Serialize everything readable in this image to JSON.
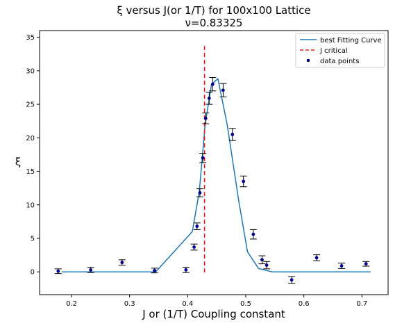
{
  "chart_data": {
    "type": "line",
    "title": "ξ versus J(or 1/T) for 100x100 Lattice",
    "subtitle": "ν=0.83325",
    "xlabel": "J or (1/T) Coupling constant",
    "ylabel": "ξ",
    "xlim": [
      0.145,
      0.745
    ],
    "ylim": [
      -3.4,
      36.0
    ],
    "xticks": [
      0.2,
      0.3,
      0.4,
      0.5,
      0.6,
      0.7
    ],
    "yticks": [
      0,
      5,
      10,
      15,
      20,
      25,
      30,
      35
    ],
    "xtick_labels": [
      "0.2",
      "0.3",
      "0.4",
      "0.5",
      "0.6",
      "0.7"
    ],
    "ytick_labels": [
      "0",
      "5",
      "10",
      "15",
      "20",
      "25",
      "30",
      "35"
    ],
    "grid": false,
    "legend_position": "top-right",
    "legend": [
      "best Fitting Curve",
      "J critical",
      "data points"
    ],
    "colors": {
      "fit": "#1f77b4",
      "critical": "#e41a1c",
      "points": "#00008b",
      "errorbar": "#000000"
    },
    "series": [
      {
        "name": "best Fitting Curve",
        "style": "solid-line",
        "x": [
          0.183,
          0.345,
          0.408,
          0.42,
          0.43,
          0.441,
          0.452,
          0.468,
          0.488,
          0.503,
          0.522,
          0.545,
          0.575,
          0.62,
          0.67,
          0.715
        ],
        "y": [
          0.0,
          0.0,
          6.0,
          12.0,
          22.0,
          28.0,
          28.8,
          22.0,
          10.5,
          3.0,
          0.5,
          0.0,
          0.0,
          0.0,
          0.0,
          0.0
        ]
      },
      {
        "name": "J critical",
        "style": "dashed-vertical",
        "x": [
          0.429,
          0.429
        ],
        "y": [
          -0.1,
          34.0
        ]
      },
      {
        "name": "data points",
        "style": "markers-with-errorbars",
        "x": [
          0.177,
          0.233,
          0.287,
          0.343,
          0.397,
          0.411,
          0.416,
          0.421,
          0.426,
          0.431,
          0.437,
          0.443,
          0.461,
          0.477,
          0.496,
          0.513,
          0.528,
          0.536,
          0.579,
          0.622,
          0.665,
          0.707
        ],
        "y": [
          0.1,
          0.3,
          1.4,
          0.2,
          0.3,
          3.7,
          6.8,
          11.8,
          17.0,
          22.9,
          25.9,
          28.0,
          27.1,
          20.5,
          13.5,
          5.6,
          1.8,
          1.0,
          -1.2,
          2.1,
          0.9,
          1.2
        ],
        "error": [
          0.35,
          0.4,
          0.4,
          0.35,
          0.4,
          0.45,
          0.5,
          0.6,
          0.7,
          0.8,
          0.9,
          1.0,
          1.0,
          0.9,
          0.8,
          0.7,
          0.6,
          0.55,
          0.5,
          0.45,
          0.4,
          0.35
        ]
      }
    ]
  }
}
